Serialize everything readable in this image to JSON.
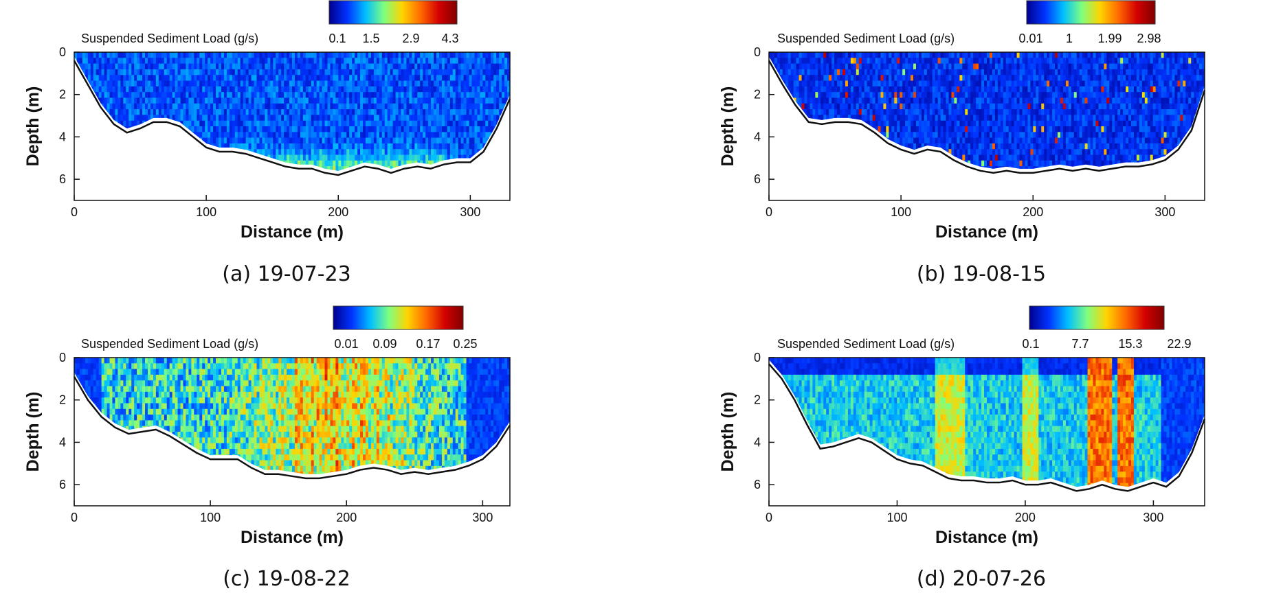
{
  "colormap": [
    "#00008f",
    "#0033ff",
    "#00bfff",
    "#7fff7f",
    "#ffd400",
    "#ff6a00",
    "#d40000",
    "#800000"
  ],
  "chart_data": [
    {
      "type": "heatmap",
      "caption": "(a) 19-07-23",
      "colorbar_label": "Suspended Sediment Load (g/s)",
      "colorbar_ticks": [
        "0.1",
        "1.5",
        "2.9",
        "4.3"
      ],
      "xlabel": "Distance (m)",
      "ylabel": "Depth (m)",
      "xticks": [
        "0",
        "100",
        "200",
        "300"
      ],
      "yticks": [
        "0",
        "2",
        "4",
        "6"
      ],
      "xlim": [
        0,
        330
      ],
      "ylim": [
        0,
        7
      ],
      "profile": [
        [
          0,
          0.4
        ],
        [
          10,
          1.5
        ],
        [
          20,
          2.6
        ],
        [
          30,
          3.4
        ],
        [
          40,
          3.8
        ],
        [
          50,
          3.6
        ],
        [
          60,
          3.3
        ],
        [
          70,
          3.3
        ],
        [
          80,
          3.5
        ],
        [
          90,
          4.0
        ],
        [
          100,
          4.5
        ],
        [
          110,
          4.7
        ],
        [
          120,
          4.7
        ],
        [
          130,
          4.8
        ],
        [
          140,
          5.0
        ],
        [
          150,
          5.2
        ],
        [
          160,
          5.4
        ],
        [
          170,
          5.5
        ],
        [
          180,
          5.5
        ],
        [
          190,
          5.7
        ],
        [
          200,
          5.8
        ],
        [
          210,
          5.6
        ],
        [
          220,
          5.4
        ],
        [
          230,
          5.5
        ],
        [
          240,
          5.7
        ],
        [
          250,
          5.5
        ],
        [
          260,
          5.4
        ],
        [
          270,
          5.5
        ],
        [
          280,
          5.3
        ],
        [
          290,
          5.2
        ],
        [
          300,
          5.2
        ],
        [
          310,
          4.7
        ],
        [
          320,
          3.6
        ],
        [
          330,
          2.2
        ]
      ],
      "intensity": "bottom"
    },
    {
      "type": "heatmap",
      "caption": "(b) 19-08-15",
      "colorbar_label": "Suspended Sediment Load (g/s)",
      "colorbar_ticks": [
        "0.01",
        "1",
        "1.99",
        "2.98"
      ],
      "xlabel": "Distance (m)",
      "ylabel": "Depth (m)",
      "xticks": [
        "0",
        "100",
        "200",
        "300"
      ],
      "yticks": [
        "0",
        "2",
        "4",
        "6"
      ],
      "xlim": [
        0,
        330
      ],
      "ylim": [
        0,
        7
      ],
      "profile": [
        [
          0,
          0.4
        ],
        [
          10,
          1.5
        ],
        [
          20,
          2.5
        ],
        [
          30,
          3.3
        ],
        [
          40,
          3.4
        ],
        [
          50,
          3.3
        ],
        [
          60,
          3.3
        ],
        [
          70,
          3.4
        ],
        [
          80,
          3.8
        ],
        [
          90,
          4.3
        ],
        [
          100,
          4.6
        ],
        [
          110,
          4.8
        ],
        [
          120,
          4.6
        ],
        [
          130,
          4.7
        ],
        [
          140,
          5.1
        ],
        [
          150,
          5.4
        ],
        [
          160,
          5.6
        ],
        [
          170,
          5.7
        ],
        [
          180,
          5.6
        ],
        [
          190,
          5.7
        ],
        [
          200,
          5.7
        ],
        [
          210,
          5.6
        ],
        [
          220,
          5.5
        ],
        [
          230,
          5.6
        ],
        [
          240,
          5.5
        ],
        [
          250,
          5.6
        ],
        [
          260,
          5.5
        ],
        [
          270,
          5.4
        ],
        [
          280,
          5.4
        ],
        [
          290,
          5.3
        ],
        [
          300,
          5.1
        ],
        [
          310,
          4.6
        ],
        [
          320,
          3.7
        ],
        [
          330,
          1.8
        ]
      ],
      "intensity": "sparse"
    },
    {
      "type": "heatmap",
      "caption": "(c) 19-08-22",
      "colorbar_label": "Suspended Sediment Load (g/s)",
      "colorbar_ticks": [
        "0.01",
        "0.09",
        "0.17",
        "0.25"
      ],
      "xlabel": "Distance (m)",
      "ylabel": "Depth (m)",
      "xticks": [
        "0",
        "100",
        "200",
        "300"
      ],
      "yticks": [
        "0",
        "2",
        "4",
        "6"
      ],
      "xlim": [
        0,
        320
      ],
      "ylim": [
        0,
        7
      ],
      "profile": [
        [
          0,
          0.9
        ],
        [
          10,
          2.0
        ],
        [
          20,
          2.8
        ],
        [
          30,
          3.3
        ],
        [
          40,
          3.6
        ],
        [
          50,
          3.5
        ],
        [
          60,
          3.4
        ],
        [
          70,
          3.7
        ],
        [
          80,
          4.1
        ],
        [
          90,
          4.5
        ],
        [
          100,
          4.8
        ],
        [
          110,
          4.8
        ],
        [
          120,
          4.8
        ],
        [
          130,
          5.2
        ],
        [
          140,
          5.5
        ],
        [
          150,
          5.5
        ],
        [
          160,
          5.6
        ],
        [
          170,
          5.7
        ],
        [
          180,
          5.7
        ],
        [
          190,
          5.6
        ],
        [
          200,
          5.5
        ],
        [
          210,
          5.3
        ],
        [
          220,
          5.2
        ],
        [
          230,
          5.3
        ],
        [
          240,
          5.5
        ],
        [
          250,
          5.4
        ],
        [
          260,
          5.5
        ],
        [
          270,
          5.4
        ],
        [
          280,
          5.3
        ],
        [
          290,
          5.1
        ],
        [
          300,
          4.8
        ],
        [
          310,
          4.2
        ],
        [
          320,
          3.2
        ]
      ],
      "intensity": "dense"
    },
    {
      "type": "heatmap",
      "caption": "(d) 20-07-26",
      "colorbar_label": "Suspended Sediment Load (g/s)",
      "colorbar_ticks": [
        "0.1",
        "7.7",
        "15.3",
        "22.9"
      ],
      "xlabel": "Distance (m)",
      "ylabel": "Depth (m)",
      "xticks": [
        "0",
        "100",
        "200",
        "300"
      ],
      "yticks": [
        "0",
        "2",
        "4",
        "6"
      ],
      "xlim": [
        0,
        340
      ],
      "ylim": [
        0,
        7
      ],
      "profile": [
        [
          0,
          0.3
        ],
        [
          10,
          1.0
        ],
        [
          20,
          2.0
        ],
        [
          30,
          3.2
        ],
        [
          40,
          4.3
        ],
        [
          50,
          4.2
        ],
        [
          60,
          4.0
        ],
        [
          70,
          3.8
        ],
        [
          80,
          4.0
        ],
        [
          90,
          4.4
        ],
        [
          100,
          4.8
        ],
        [
          110,
          5.0
        ],
        [
          120,
          5.1
        ],
        [
          130,
          5.4
        ],
        [
          140,
          5.7
        ],
        [
          150,
          5.8
        ],
        [
          160,
          5.8
        ],
        [
          170,
          5.9
        ],
        [
          180,
          5.9
        ],
        [
          190,
          5.8
        ],
        [
          200,
          6.0
        ],
        [
          210,
          6.0
        ],
        [
          220,
          5.9
        ],
        [
          230,
          6.1
        ],
        [
          240,
          6.3
        ],
        [
          250,
          6.2
        ],
        [
          260,
          6.0
        ],
        [
          270,
          6.2
        ],
        [
          280,
          6.3
        ],
        [
          290,
          6.1
        ],
        [
          300,
          5.9
        ],
        [
          310,
          6.1
        ],
        [
          320,
          5.6
        ],
        [
          330,
          4.5
        ],
        [
          340,
          2.9
        ]
      ],
      "intensity": "bands"
    }
  ]
}
